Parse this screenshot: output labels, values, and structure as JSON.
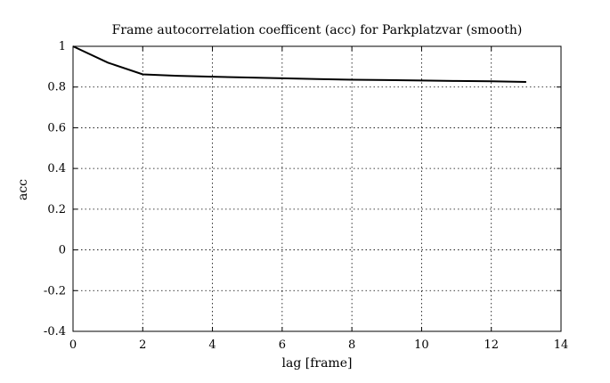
{
  "chart_data": {
    "type": "line",
    "title": "Frame autocorrelation coefficent (acc) for Parkplatzvar (smooth)",
    "xlabel": "lag [frame]",
    "ylabel": "acc",
    "xlim": [
      0,
      14
    ],
    "ylim": [
      -0.4,
      1
    ],
    "xticks": [
      "0",
      "2",
      "4",
      "6",
      "8",
      "10",
      "12",
      "14"
    ],
    "yticks": [
      "-0.4",
      "-0.2",
      "0",
      "0.2",
      "0.4",
      "0.6",
      "0.8",
      "1"
    ],
    "grid": true,
    "series": [
      {
        "x": [
          0,
          1,
          2,
          3,
          4,
          5,
          6,
          7,
          8,
          9,
          10,
          11,
          12,
          13
        ],
        "y": [
          1.0,
          0.92,
          0.862,
          0.855,
          0.851,
          0.847,
          0.843,
          0.839,
          0.836,
          0.834,
          0.832,
          0.83,
          0.828,
          0.825
        ],
        "color": "#000000"
      }
    ]
  }
}
